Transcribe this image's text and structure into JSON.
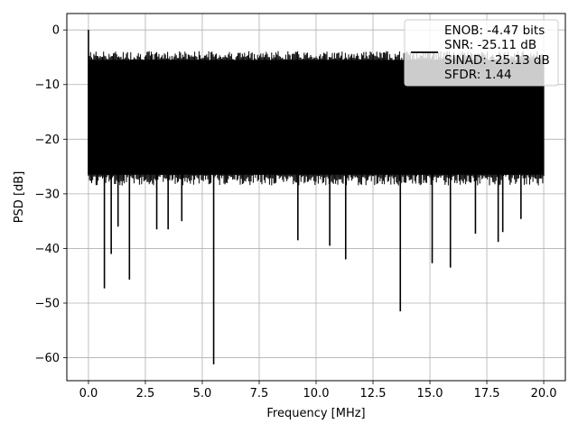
{
  "chart_data": {
    "type": "line",
    "title": "",
    "xlabel": "Frequency [MHz]",
    "ylabel": "PSD [dB]",
    "xlim": [
      -0.95,
      20.95
    ],
    "ylim": [
      -64.2,
      3.0
    ],
    "grid": true,
    "x_ticks": [
      0.0,
      2.5,
      5.0,
      7.5,
      10.0,
      12.5,
      15.0,
      17.5,
      20.0
    ],
    "x_tick_labels": [
      "0.0",
      "2.5",
      "5.0",
      "7.5",
      "10.0",
      "12.5",
      "15.0",
      "17.5",
      "20.0"
    ],
    "y_ticks": [
      0,
      -10,
      -20,
      -30,
      -40,
      -50,
      -60
    ],
    "y_tick_labels": [
      "0",
      "−10",
      "−20",
      "−30",
      "−40",
      "−50",
      "−60"
    ],
    "legend": {
      "placement": "top-right",
      "lines": [
        "ENOB: -4.47 bits",
        "SNR: -25.11 dB",
        "SINAD: -25.13 dB",
        "SFDR: 1.44"
      ]
    },
    "series": [
      {
        "color": "#000000",
        "band": {
          "x_start": 0.0,
          "x_end": 20.0,
          "top": -5.5,
          "bottom": -26.5
        },
        "peak": {
          "x": 0.0,
          "y": 0.0
        },
        "notches": [
          {
            "x": 0.7,
            "y": -47.3
          },
          {
            "x": 1.0,
            "y": -41.0
          },
          {
            "x": 1.3,
            "y": -36.0
          },
          {
            "x": 1.8,
            "y": -45.7
          },
          {
            "x": 3.0,
            "y": -36.5
          },
          {
            "x": 3.5,
            "y": -36.5
          },
          {
            "x": 4.1,
            "y": -35.0
          },
          {
            "x": 5.5,
            "y": -61.2
          },
          {
            "x": 9.2,
            "y": -38.5
          },
          {
            "x": 10.6,
            "y": -39.5
          },
          {
            "x": 11.3,
            "y": -42.0
          },
          {
            "x": 13.7,
            "y": -51.5
          },
          {
            "x": 15.1,
            "y": -42.7
          },
          {
            "x": 15.9,
            "y": -43.5
          },
          {
            "x": 17.0,
            "y": -37.3
          },
          {
            "x": 18.0,
            "y": -38.8
          },
          {
            "x": 18.2,
            "y": -37.0
          },
          {
            "x": 19.0,
            "y": -34.6
          }
        ]
      }
    ]
  }
}
